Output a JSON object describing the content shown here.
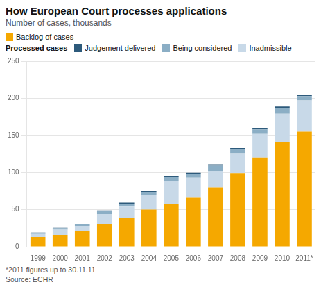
{
  "chart_data": {
    "type": "bar",
    "title": "How European Court processes applications",
    "subtitle": "Number of cases, thousands",
    "footnote": "*2011 figures up to 30.11.11",
    "source": "Source: ECHR",
    "annotations": [
      "Processed cases"
    ],
    "categories": [
      "1999",
      "2000",
      "2001",
      "2002",
      "2003",
      "2004",
      "2005",
      "2006",
      "2007",
      "2008",
      "2009",
      "2010",
      "2011*"
    ],
    "series": [
      {
        "name": "Backlog of cases",
        "color": "#F5A800",
        "values": [
          13,
          16,
          21,
          30,
          39,
          50,
          58,
          66,
          80,
          99,
          120,
          141,
          155
        ]
      },
      {
        "name": "Inadmissible",
        "color": "#C8D9E8",
        "values": [
          4,
          7,
          7,
          14,
          15,
          20,
          30,
          27,
          22,
          27,
          32,
          38,
          42
        ]
      },
      {
        "name": "Being considered",
        "color": "#8BAEC5",
        "values": [
          1.5,
          2,
          2.5,
          4,
          4,
          4,
          6,
          5,
          7,
          5,
          6,
          8,
          6
        ]
      },
      {
        "name": "Judgement delivered",
        "color": "#2D5A7B",
        "values": [
          0.5,
          0.5,
          0.5,
          1,
          1.5,
          1,
          1.5,
          1.5,
          2,
          2,
          2,
          2,
          2
        ]
      }
    ],
    "stacked": true,
    "ylim": [
      0,
      250
    ],
    "yticks": [
      0,
      50,
      100,
      150,
      200,
      250
    ],
    "grid": true,
    "legend": "top"
  }
}
